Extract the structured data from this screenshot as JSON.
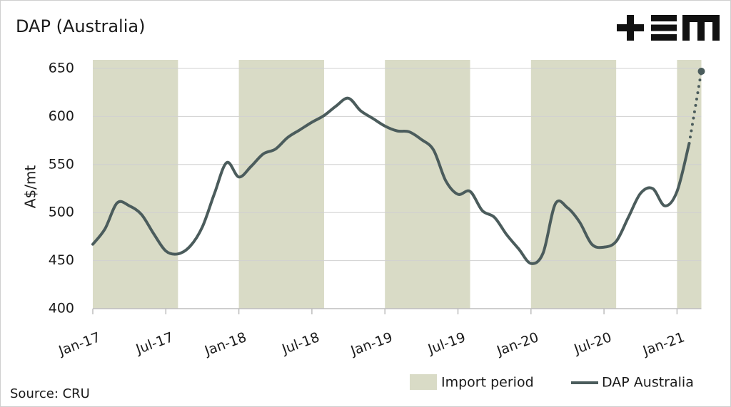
{
  "chart_data": {
    "type": "line",
    "title": "DAP (Australia)",
    "y_label": "A$/mt",
    "source": "Source: CRU",
    "categories": [
      "Jan-17",
      null,
      null,
      null,
      null,
      null,
      "Jul-17",
      null,
      null,
      null,
      null,
      null,
      "Jan-18",
      null,
      null,
      null,
      null,
      null,
      "Jul-18",
      null,
      null,
      null,
      null,
      null,
      "Jan-19",
      null,
      null,
      null,
      null,
      null,
      "Jul-19",
      null,
      null,
      null,
      null,
      null,
      "Jan-20",
      null,
      null,
      null,
      null,
      null,
      "Jul-20",
      null,
      null,
      null,
      null,
      null,
      "Jan-21",
      null,
      null
    ],
    "series": [
      {
        "name": "DAP Australia",
        "color": "#4b5c5c",
        "values": [
          467,
          483,
          510,
          507,
          498,
          478,
          460,
          457,
          465,
          485,
          520,
          552,
          537,
          548,
          561,
          566,
          578,
          586,
          594,
          601,
          611,
          619,
          606,
          598,
          590,
          585,
          584,
          576,
          565,
          533,
          519,
          522,
          502,
          495,
          477,
          462,
          447,
          458,
          509,
          505,
          490,
          467,
          464,
          470,
          495,
          520,
          525,
          507,
          522,
          572,
          null
        ],
        "projection_values": [
          null,
          null,
          null,
          null,
          null,
          null,
          null,
          null,
          null,
          null,
          null,
          null,
          null,
          null,
          null,
          null,
          null,
          null,
          null,
          null,
          null,
          null,
          null,
          null,
          null,
          null,
          null,
          null,
          null,
          null,
          null,
          null,
          null,
          null,
          null,
          null,
          null,
          null,
          null,
          null,
          null,
          null,
          null,
          null,
          null,
          null,
          null,
          null,
          null,
          572,
          647
        ]
      }
    ],
    "shading": {
      "name": "Import period",
      "color": "#d9dbc6",
      "periods": [
        [
          0,
          7
        ],
        [
          12,
          19
        ],
        [
          24,
          31
        ],
        [
          36,
          43
        ],
        [
          48,
          50
        ]
      ]
    },
    "ylim": [
      400,
      650
    ],
    "yticks": [
      400,
      450,
      500,
      550,
      600,
      650
    ],
    "grid": true,
    "legend": "bottom-right"
  }
}
